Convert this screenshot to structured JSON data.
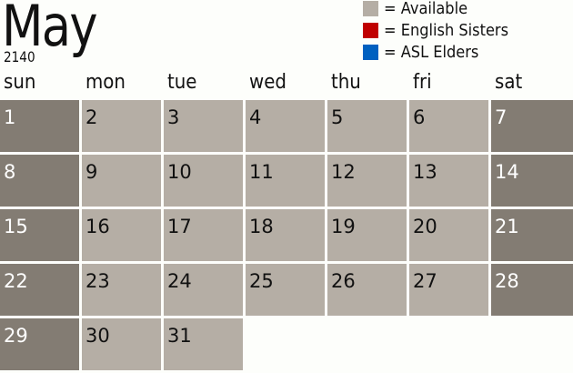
{
  "header": {
    "month": "May",
    "year": "2140"
  },
  "legend": [
    {
      "label": "= Available",
      "color": "#b5aea5"
    },
    {
      "label": "= English Sisters",
      "color": "#c00000"
    },
    {
      "label": "= ASL Elders",
      "color": "#0060c0"
    }
  ],
  "colors": {
    "weekday": "#b5aea5",
    "weekend": "#837c73"
  },
  "weekdays": [
    "sun",
    "mon",
    "tue",
    "wed",
    "thu",
    "fri",
    "sat"
  ],
  "days": [
    "1",
    "2",
    "3",
    "4",
    "5",
    "6",
    "7",
    "8",
    "9",
    "10",
    "11",
    "12",
    "13",
    "14",
    "15",
    "16",
    "17",
    "18",
    "19",
    "20",
    "21",
    "22",
    "23",
    "24",
    "25",
    "26",
    "27",
    "28",
    "29",
    "30",
    "31"
  ]
}
